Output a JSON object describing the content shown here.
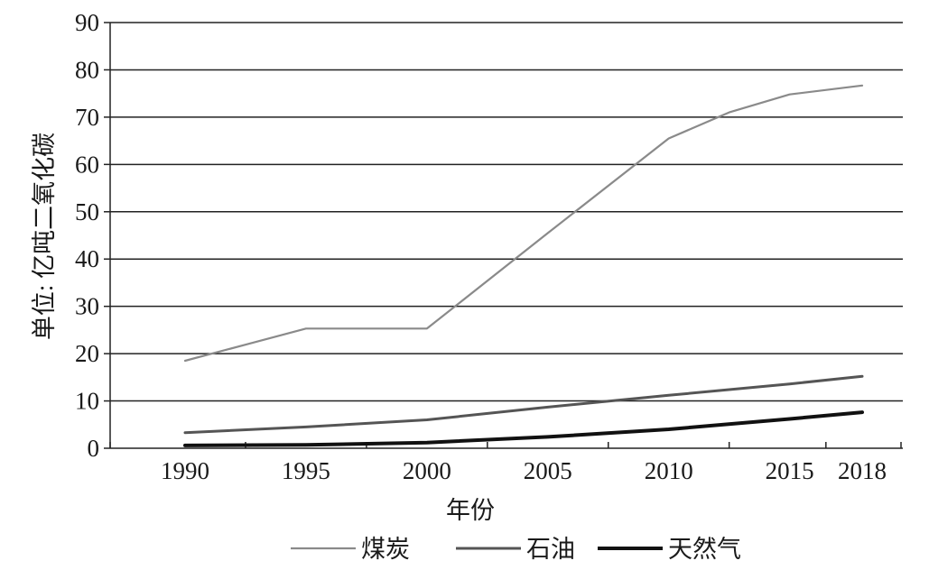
{
  "chart_data": {
    "type": "line",
    "title": "",
    "xlabel": "年份",
    "ylabel": "单位: 亿吨二氧化碳",
    "x": [
      1990,
      1995,
      2000,
      2005,
      2010,
      2015,
      2018
    ],
    "x_tick_labels": [
      "1990",
      "1995",
      "2000",
      "2005",
      "2010",
      "2015",
      "2018"
    ],
    "y_ticks": [
      0,
      10,
      20,
      30,
      40,
      50,
      60,
      70,
      80,
      90
    ],
    "ylim": [
      0,
      90
    ],
    "grid": "horizontal",
    "legend_position": "bottom",
    "series": [
      {
        "name": "煤炭",
        "color": "#8a8a8a",
        "points": [
          [
            1990,
            18.5
          ],
          [
            1995,
            25.3
          ],
          [
            2000,
            25.3
          ],
          [
            2005,
            45.5
          ],
          [
            2010,
            65.5
          ],
          [
            2012.5,
            71
          ],
          [
            2015,
            74.8
          ],
          [
            2018,
            76.7
          ]
        ]
      },
      {
        "name": "石油",
        "color": "#555555",
        "points": [
          [
            1990,
            3.3
          ],
          [
            1995,
            4.5
          ],
          [
            2000,
            6.0
          ],
          [
            2005,
            8.7
          ],
          [
            2010,
            11.2
          ],
          [
            2015,
            13.6
          ],
          [
            2018,
            15.2
          ]
        ]
      },
      {
        "name": "天然气",
        "color": "#111111",
        "points": [
          [
            1990,
            0.6
          ],
          [
            1995,
            0.7
          ],
          [
            2000,
            1.2
          ],
          [
            2005,
            2.4
          ],
          [
            2010,
            4.0
          ],
          [
            2015,
            6.2
          ],
          [
            2018,
            7.6
          ]
        ]
      }
    ]
  }
}
